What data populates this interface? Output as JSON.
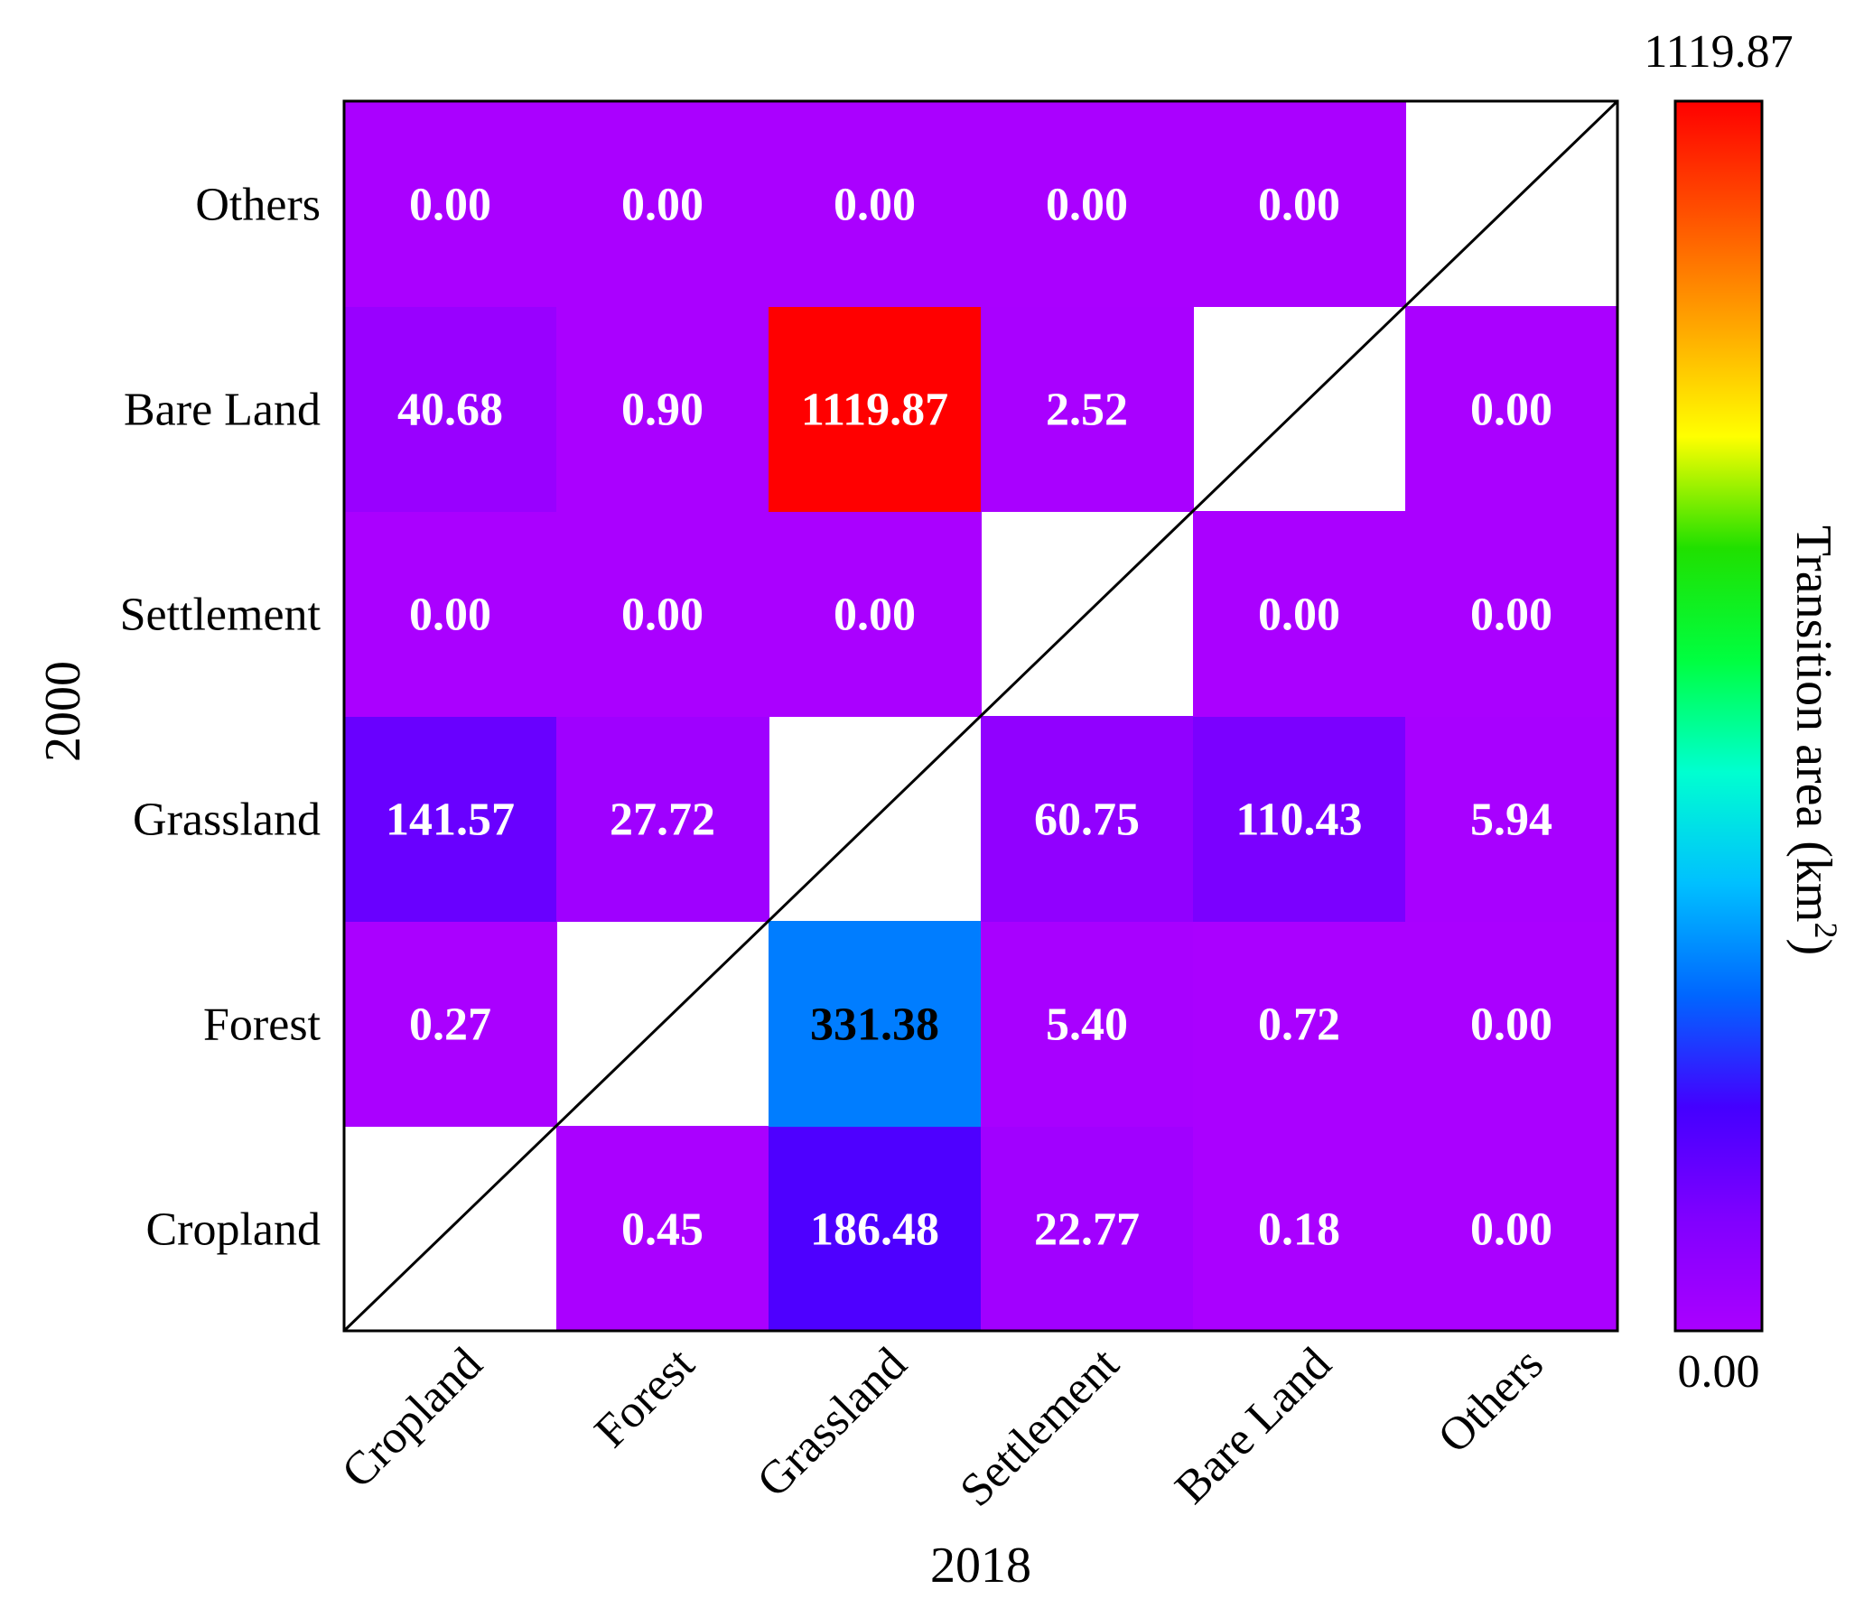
{
  "chart_data": {
    "type": "heatmap",
    "title": "",
    "xlabel": "2018",
    "ylabel": "2000",
    "x_categories": [
      "Cropland",
      "Forest",
      "Grassland",
      "Settlement",
      "Bare Land",
      "Others"
    ],
    "y_categories": [
      "Cropland",
      "Forest",
      "Grassland",
      "Settlement",
      "Bare Land",
      "Others"
    ],
    "cells": [
      {
        "from": "Cropland",
        "to": "Forest",
        "value": 0.45,
        "label": "0.45"
      },
      {
        "from": "Cropland",
        "to": "Grassland",
        "value": 186.48,
        "label": "186.48"
      },
      {
        "from": "Cropland",
        "to": "Settlement",
        "value": 22.77,
        "label": "22.77"
      },
      {
        "from": "Cropland",
        "to": "Bare Land",
        "value": 0.18,
        "label": "0.18"
      },
      {
        "from": "Cropland",
        "to": "Others",
        "value": 0.0,
        "label": "0.00"
      },
      {
        "from": "Forest",
        "to": "Cropland",
        "value": 0.27,
        "label": "0.27"
      },
      {
        "from": "Forest",
        "to": "Grassland",
        "value": 331.38,
        "label": "331.38"
      },
      {
        "from": "Forest",
        "to": "Settlement",
        "value": 5.4,
        "label": "5.40"
      },
      {
        "from": "Forest",
        "to": "Bare Land",
        "value": 0.72,
        "label": "0.72"
      },
      {
        "from": "Forest",
        "to": "Others",
        "value": 0.0,
        "label": "0.00"
      },
      {
        "from": "Grassland",
        "to": "Cropland",
        "value": 141.57,
        "label": "141.57"
      },
      {
        "from": "Grassland",
        "to": "Forest",
        "value": 27.72,
        "label": "27.72"
      },
      {
        "from": "Grassland",
        "to": "Settlement",
        "value": 60.75,
        "label": "60.75"
      },
      {
        "from": "Grassland",
        "to": "Bare Land",
        "value": 110.43,
        "label": "110.43"
      },
      {
        "from": "Grassland",
        "to": "Others",
        "value": 5.94,
        "label": "5.94"
      },
      {
        "from": "Settlement",
        "to": "Cropland",
        "value": 0.0,
        "label": "0.00"
      },
      {
        "from": "Settlement",
        "to": "Forest",
        "value": 0.0,
        "label": "0.00"
      },
      {
        "from": "Settlement",
        "to": "Grassland",
        "value": 0.0,
        "label": "0.00"
      },
      {
        "from": "Settlement",
        "to": "Bare Land",
        "value": 0.0,
        "label": "0.00"
      },
      {
        "from": "Settlement",
        "to": "Others",
        "value": 0.0,
        "label": "0.00"
      },
      {
        "from": "Bare Land",
        "to": "Cropland",
        "value": 40.68,
        "label": "40.68"
      },
      {
        "from": "Bare Land",
        "to": "Forest",
        "value": 0.9,
        "label": "0.90"
      },
      {
        "from": "Bare Land",
        "to": "Grassland",
        "value": 1119.87,
        "label": "1119.87"
      },
      {
        "from": "Bare Land",
        "to": "Settlement",
        "value": 2.52,
        "label": "2.52"
      },
      {
        "from": "Bare Land",
        "to": "Others",
        "value": 0.0,
        "label": "0.00"
      },
      {
        "from": "Others",
        "to": "Cropland",
        "value": 0.0,
        "label": "0.00"
      },
      {
        "from": "Others",
        "to": "Forest",
        "value": 0.0,
        "label": "0.00"
      },
      {
        "from": "Others",
        "to": "Grassland",
        "value": 0.0,
        "label": "0.00"
      },
      {
        "from": "Others",
        "to": "Settlement",
        "value": 0.0,
        "label": "0.00"
      },
      {
        "from": "Others",
        "to": "Bare Land",
        "value": 0.0,
        "label": "0.00"
      }
    ],
    "diagonal": "blank with diagonal line",
    "colorbar": {
      "label": "Transition area (km",
      "label_sup": "2",
      "label_end": ")",
      "min": 0.0,
      "max": 1119.87,
      "min_label": "0.00",
      "max_label": "1119.87",
      "colormap": "rainbow (violet to red)"
    }
  },
  "colors": {
    "cell_text_light": "#ffffff",
    "cell_text_dark": "#000000",
    "diagonal_cell": "#ffffff",
    "colormap_stops": [
      "#aa00ff",
      "#8000ff",
      "#4400ff",
      "#0066ff",
      "#00c0ff",
      "#00ffd0",
      "#00ff40",
      "#20e000",
      "#ffff00",
      "#ffa500",
      "#ff5000",
      "#ff0000"
    ]
  }
}
